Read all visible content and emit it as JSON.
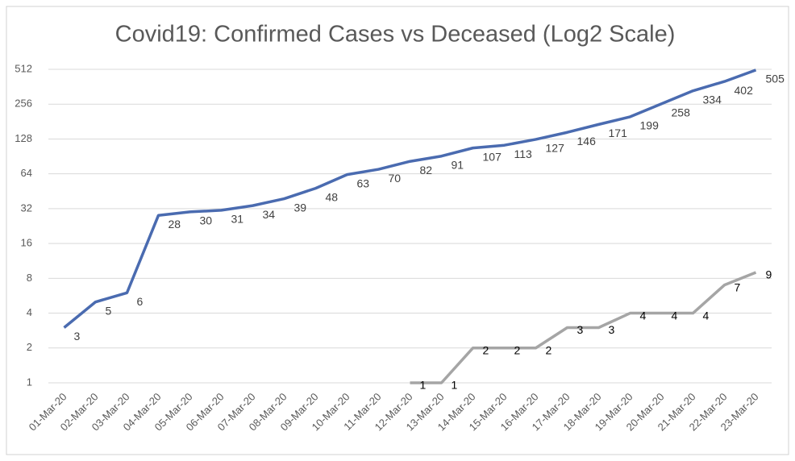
{
  "chart_data": {
    "type": "line",
    "title": "Covid19: Confirmed Cases vs Deceased (Log2 Scale)",
    "categories": [
      "01-Mar-20",
      "02-Mar-20",
      "03-Mar-20",
      "04-Mar-20",
      "05-Mar-20",
      "06-Mar-20",
      "07-Mar-20",
      "08-Mar-20",
      "09-Mar-20",
      "10-Mar-20",
      "11-Mar-20",
      "12-Mar-20",
      "13-Mar-20",
      "14-Mar-20",
      "15-Mar-20",
      "16-Mar-20",
      "17-Mar-20",
      "18-Mar-20",
      "19-Mar-20",
      "20-Mar-20",
      "21-Mar-20",
      "22-Mar-20",
      "23-Mar-20"
    ],
    "series": [
      {
        "color": "#4a6bb0",
        "label_color": "#404040",
        "values": [
          3,
          5,
          6,
          28,
          30,
          31,
          34,
          39,
          48,
          63,
          70,
          82,
          91,
          107,
          113,
          127,
          146,
          171,
          199,
          258,
          334,
          402,
          505
        ]
      },
      {
        "color": "#a5a5a5",
        "label_color": "#000000",
        "values": [
          null,
          null,
          null,
          null,
          null,
          null,
          null,
          null,
          null,
          null,
          null,
          1,
          1,
          2,
          2,
          2,
          3,
          3,
          4,
          4,
          4,
          7,
          9
        ]
      }
    ],
    "yscale": "log",
    "log_base": 2,
    "ylim": [
      1,
      512
    ],
    "yticks": [
      1,
      2,
      4,
      8,
      16,
      32,
      64,
      128,
      256,
      512
    ],
    "grid": true
  }
}
